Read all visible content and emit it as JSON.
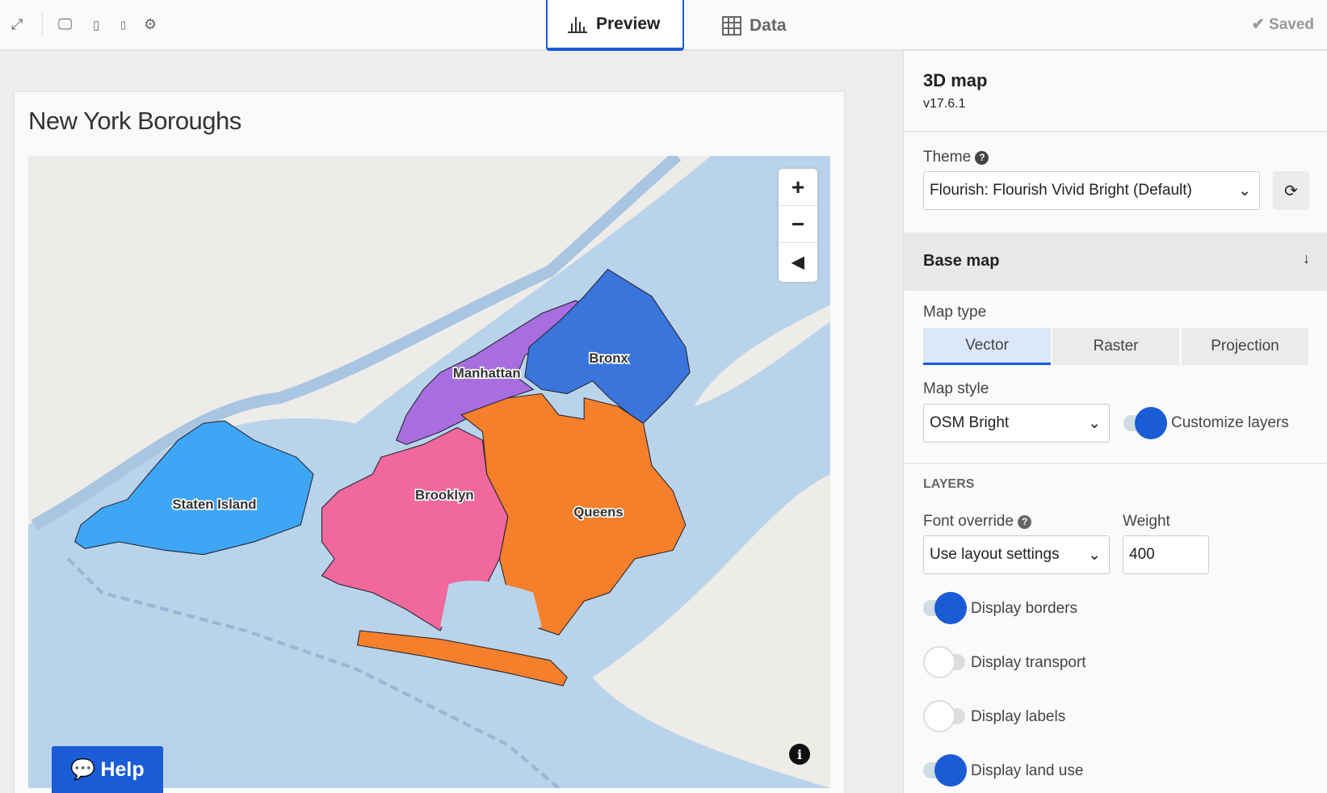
{
  "toolbar": {
    "icons": [
      "expand-icon",
      "desktop-icon",
      "tablet-icon",
      "mobile-icon",
      "gear-icon"
    ],
    "tabs": [
      {
        "label": "Preview",
        "active": true
      },
      {
        "label": "Data",
        "active": false
      }
    ],
    "saved": "Saved"
  },
  "visual": {
    "title": "New York Boroughs",
    "boroughs": [
      {
        "name": "Staten Island",
        "color": "#3ea6f5"
      },
      {
        "name": "Manhattan",
        "color": "#a86ddf"
      },
      {
        "name": "Bronx",
        "color": "#3a75dc"
      },
      {
        "name": "Brooklyn",
        "color": "#f0689c"
      },
      {
        "name": "Queens",
        "color": "#f57f2a"
      }
    ],
    "help": "Help"
  },
  "panel": {
    "title": "3D map",
    "version": "v17.6.1",
    "theme_label": "Theme",
    "theme_value": "Flourish: Flourish Vivid Bright (Default)",
    "section": "Base map",
    "map_type_label": "Map type",
    "map_types": [
      "Vector",
      "Raster",
      "Projection"
    ],
    "map_type_selected": "Vector",
    "map_style_label": "Map style",
    "map_style_value": "OSM Bright",
    "customize_layers": {
      "label": "Customize layers",
      "on": true
    },
    "layers_heading": "LAYERS",
    "font_override_label": "Font override",
    "font_override_value": "Use layout settings",
    "weight_label": "Weight",
    "weight_value": "400",
    "toggles": [
      {
        "label": "Display borders",
        "on": true
      },
      {
        "label": "Display transport",
        "on": false
      },
      {
        "label": "Display labels",
        "on": false
      },
      {
        "label": "Display land use",
        "on": true
      }
    ]
  },
  "colors": {
    "accent": "#1a5bd6",
    "water": "#b9d3ea",
    "land": "#eeece8"
  }
}
